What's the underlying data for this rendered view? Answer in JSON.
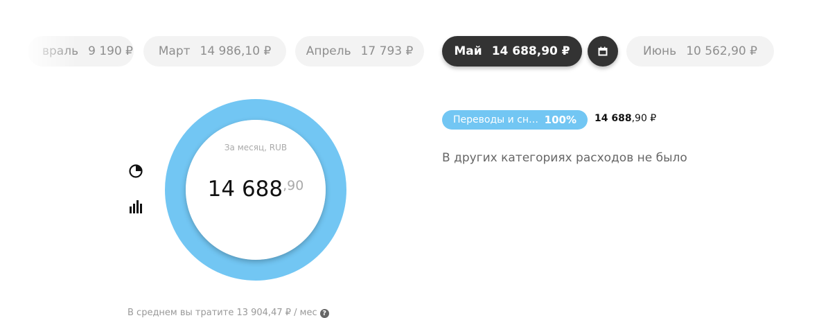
{
  "months": [
    {
      "label": "враль",
      "amount": "9 190 ₽",
      "active": false
    },
    {
      "label": "Март",
      "amount": "14 986,10 ₽",
      "active": false
    },
    {
      "label": "Апрель",
      "amount": "17 793 ₽",
      "active": false
    },
    {
      "label": "Май",
      "amount": "14 688,90 ₽",
      "active": true
    },
    {
      "label": "Июнь",
      "amount": "10 562,90 ₽",
      "active": false
    }
  ],
  "calendar_icon": "calendar-icon",
  "view_icons": [
    "pie-chart-icon",
    "bar-chart-icon"
  ],
  "summary": {
    "caption": "За месяц, RUB",
    "total_int": "14 688",
    "total_dec": ",90",
    "average": "В среднем вы тратите 13 904,47 ₽ / мес",
    "help": "?"
  },
  "categories": [
    {
      "name": "Переводы и сн…",
      "percent": "100%",
      "amount_int": "14 688",
      "amount_dec": ",90 ₽",
      "share": 1.0,
      "color": "#72c6f3"
    }
  ],
  "empty_note": "В других категориях расходов не было",
  "colors": {
    "accent": "#72c6f3",
    "active": "#333333"
  }
}
